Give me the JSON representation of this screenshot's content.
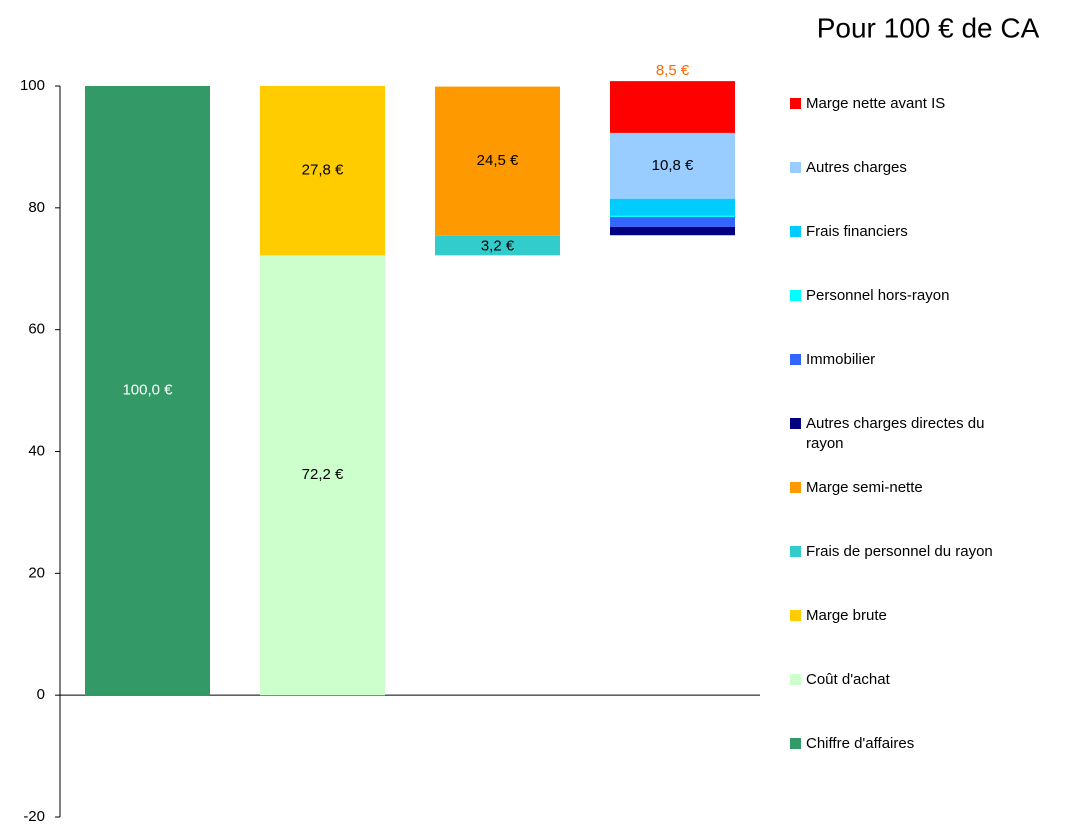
{
  "chart_data": {
    "type": "stacked_bar",
    "title": "Pour 100 € de CA",
    "ylim": [
      -20,
      100
    ],
    "yticks": [
      -20,
      0,
      20,
      40,
      60,
      80,
      100
    ],
    "series": [
      {
        "color": "none",
        "values": [
          null,
          null,
          72.2,
          75.5
        ]
      },
      {
        "name": "Chiffre d'affaires",
        "color": "#339966",
        "values": [
          100,
          null,
          null,
          null
        ],
        "value_labels": [
          "100,0 €",
          null,
          null,
          null
        ],
        "label_color": "#ffffff",
        "label_position": "center"
      },
      {
        "name": "Coût d'achat",
        "color": "#ccffcc",
        "values": [
          null,
          72.2,
          null,
          null
        ],
        "value_labels": [
          null,
          "72,2 €",
          null,
          null
        ],
        "label_color": "#000000",
        "label_position": "center"
      },
      {
        "name": "Marge brute",
        "color": "#ffcc00",
        "values": [
          null,
          27.8,
          null,
          null
        ],
        "value_labels": [
          null,
          "27,8 €",
          null,
          null
        ],
        "label_color": "#000000",
        "label_position": "center"
      },
      {
        "name": "Frais de personnel du rayon",
        "color": "#33cccc",
        "values": [
          null,
          null,
          3.2,
          null
        ],
        "value_labels": [
          null,
          null,
          "3,2 €",
          null
        ],
        "label_color": "#000000",
        "label_position": "below"
      },
      {
        "name": "Marge semi-nette",
        "color": "#ff9900",
        "values": [
          null,
          null,
          24.5,
          null
        ],
        "value_labels": [
          null,
          null,
          "24,5 €",
          null
        ],
        "label_color": "#000000",
        "label_position": "center"
      },
      {
        "name": "Autres charges directes du rayon",
        "color": "#000080",
        "values": [
          null,
          null,
          null,
          1.4
        ]
      },
      {
        "name": "Immobilier",
        "color": "#3366ff",
        "values": [
          null,
          null,
          null,
          1.6
        ]
      },
      {
        "name": "Personnel hors-rayon",
        "color": "#00ffff",
        "values": [
          null,
          null,
          null,
          0.2
        ]
      },
      {
        "name": "Frais financiers",
        "color": "#00ccff",
        "values": [
          null,
          null,
          null,
          2.8
        ]
      },
      {
        "name": "Autres charges",
        "color": "#99ccff",
        "values": [
          null,
          null,
          null,
          10.8
        ],
        "value_labels": [
          null,
          null,
          null,
          "10,8 €"
        ],
        "label_color": "#000000",
        "label_position": "center"
      },
      {
        "name": "Marge nette avant IS",
        "color": "#ff0000",
        "values": [
          null,
          null,
          null,
          8.5
        ],
        "value_labels": [
          null,
          null,
          null,
          "8,5 €"
        ],
        "label_color": "#ff6600",
        "label_position": "above"
      }
    ]
  }
}
